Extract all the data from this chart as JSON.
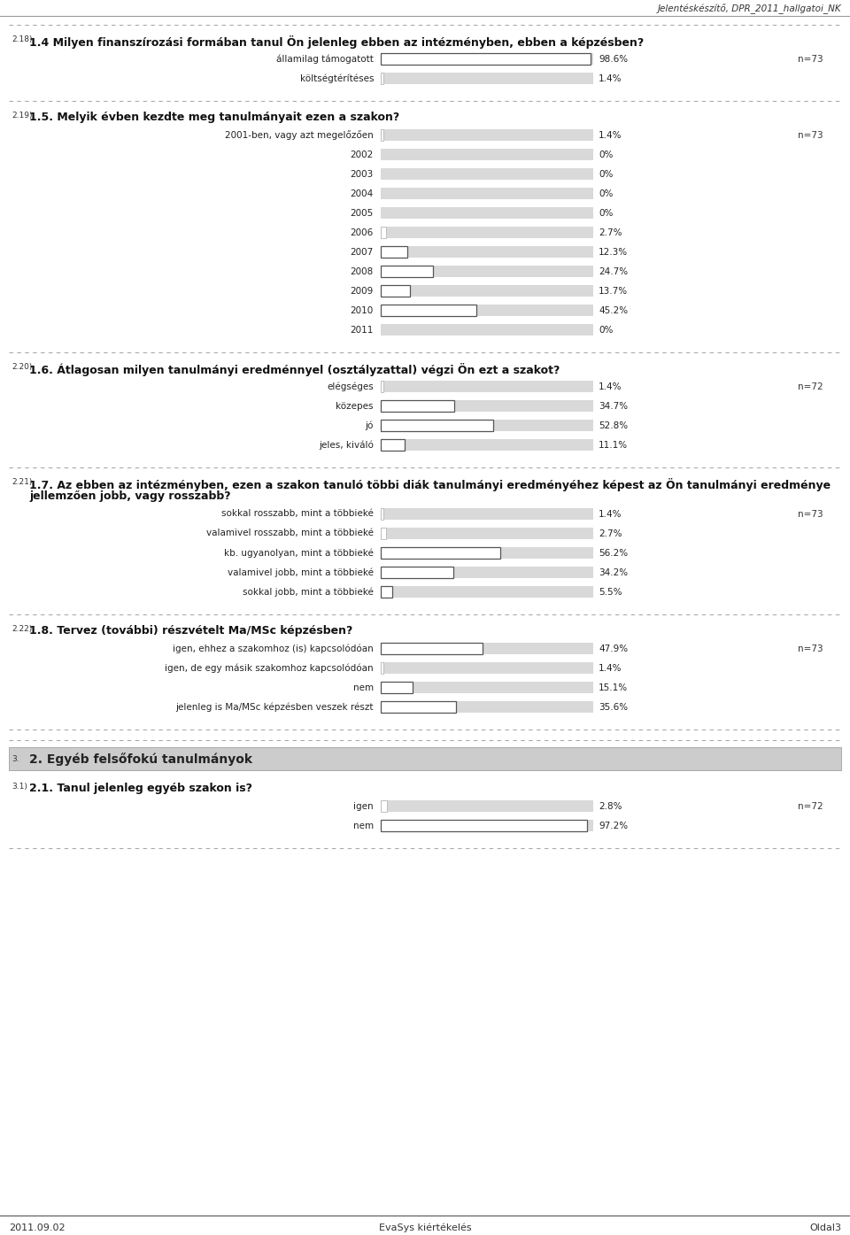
{
  "header_text": "Jelentéskészítő, DPR_2011_hallgatoi_NK",
  "footer_left": "2011.09.02",
  "footer_center": "EvaSys kiértékelés",
  "footer_right": "Oldal3",
  "bg_color": "#ffffff",
  "bar_bg_color": "#d9d9d9",
  "bar_fg_color": "#ffffff",
  "bar_outline_color": "#555555",
  "sections": [
    {
      "question_num": "2.18)",
      "question_text": "1.4 Milyen finanszírozási formában tanul Ön jelenleg ebben az intézményben, ebben a képzésben?",
      "n_label": "n=73",
      "items": [
        {
          "label": "államilag támogatott",
          "value": 98.6,
          "pct_text": "98.6%",
          "has_outline": true
        },
        {
          "label": "költségtérítéses",
          "value": 1.4,
          "pct_text": "1.4%",
          "has_outline": false
        }
      ]
    },
    {
      "question_num": "2.19)",
      "question_text": "1.5. Melyik évben kezdte meg tanulmányait ezen a szakon?",
      "n_label": "n=73",
      "items": [
        {
          "label": "2001-ben, vagy azt megelőzően",
          "value": 1.4,
          "pct_text": "1.4%",
          "has_outline": false
        },
        {
          "label": "2002",
          "value": 0.0,
          "pct_text": "0%",
          "has_outline": false
        },
        {
          "label": "2003",
          "value": 0.0,
          "pct_text": "0%",
          "has_outline": false
        },
        {
          "label": "2004",
          "value": 0.0,
          "pct_text": "0%",
          "has_outline": false
        },
        {
          "label": "2005",
          "value": 0.0,
          "pct_text": "0%",
          "has_outline": false
        },
        {
          "label": "2006",
          "value": 2.7,
          "pct_text": "2.7%",
          "has_outline": false
        },
        {
          "label": "2007",
          "value": 12.3,
          "pct_text": "12.3%",
          "has_outline": true
        },
        {
          "label": "2008",
          "value": 24.7,
          "pct_text": "24.7%",
          "has_outline": true
        },
        {
          "label": "2009",
          "value": 13.7,
          "pct_text": "13.7%",
          "has_outline": true
        },
        {
          "label": "2010",
          "value": 45.2,
          "pct_text": "45.2%",
          "has_outline": true
        },
        {
          "label": "2011",
          "value": 0.0,
          "pct_text": "0%",
          "has_outline": false
        }
      ]
    },
    {
      "question_num": "2.20)",
      "question_text": "1.6. Átlagosan milyen tanulmányi eredménnyel (osztályzattal) végzi Ön ezt a szakot?",
      "n_label": "n=72",
      "items": [
        {
          "label": "elégséges",
          "value": 1.4,
          "pct_text": "1.4%",
          "has_outline": false
        },
        {
          "label": "közepes",
          "value": 34.7,
          "pct_text": "34.7%",
          "has_outline": true
        },
        {
          "label": "jó",
          "value": 52.8,
          "pct_text": "52.8%",
          "has_outline": true
        },
        {
          "label": "jeles, kiváló",
          "value": 11.1,
          "pct_text": "11.1%",
          "has_outline": true
        }
      ]
    },
    {
      "question_num": "2.21)",
      "question_text_line1": "1.7. Az ebben az intézményben, ezen a szakon tanuló többi diák tanulmányi eredményéhez képest az Ön tanulmányi eredménye",
      "question_text_line2": "jellemzően jobb, vagy rosszabb?",
      "n_label": "n=73",
      "items": [
        {
          "label": "sokkal rosszabb, mint a többieké",
          "value": 1.4,
          "pct_text": "1.4%",
          "has_outline": false
        },
        {
          "label": "valamivel rosszabb, mint a többieké",
          "value": 2.7,
          "pct_text": "2.7%",
          "has_outline": false
        },
        {
          "label": "kb. ugyanolyan, mint a többieké",
          "value": 56.2,
          "pct_text": "56.2%",
          "has_outline": true
        },
        {
          "label": "valamivel jobb, mint a többieké",
          "value": 34.2,
          "pct_text": "34.2%",
          "has_outline": true
        },
        {
          "label": "sokkal jobb, mint a többieké",
          "value": 5.5,
          "pct_text": "5.5%",
          "has_outline": true
        }
      ]
    },
    {
      "question_num": "2.22)",
      "question_text": "1.8. Tervez (további) részvételt Ma/MSc képzésben?",
      "n_label": "n=73",
      "items": [
        {
          "label": "igen, ehhez a szakomhoz (is) kapcsolódóan",
          "value": 47.9,
          "pct_text": "47.9%",
          "has_outline": true
        },
        {
          "label": "igen, de egy másik szakomhoz kapcsolódóan",
          "value": 1.4,
          "pct_text": "1.4%",
          "has_outline": false
        },
        {
          "label": "nem",
          "value": 15.1,
          "pct_text": "15.1%",
          "has_outline": true
        },
        {
          "label": "jelenleg is Ma/MSc képzésben veszek részt",
          "value": 35.6,
          "pct_text": "35.6%",
          "has_outline": true
        }
      ]
    },
    {
      "question_num": "3.1)",
      "question_text": "2.1. Tanul jelenleg egyéb szakon is?",
      "n_label": "n=72",
      "items": [
        {
          "label": "igen",
          "value": 2.8,
          "pct_text": "2.8%",
          "has_outline": false
        },
        {
          "label": "nem",
          "value": 97.2,
          "pct_text": "97.2%",
          "has_outline": true
        }
      ]
    }
  ],
  "section_header": {
    "question_num": "3.",
    "text": "2. Egyéb felsőfokú tanulmányok"
  }
}
